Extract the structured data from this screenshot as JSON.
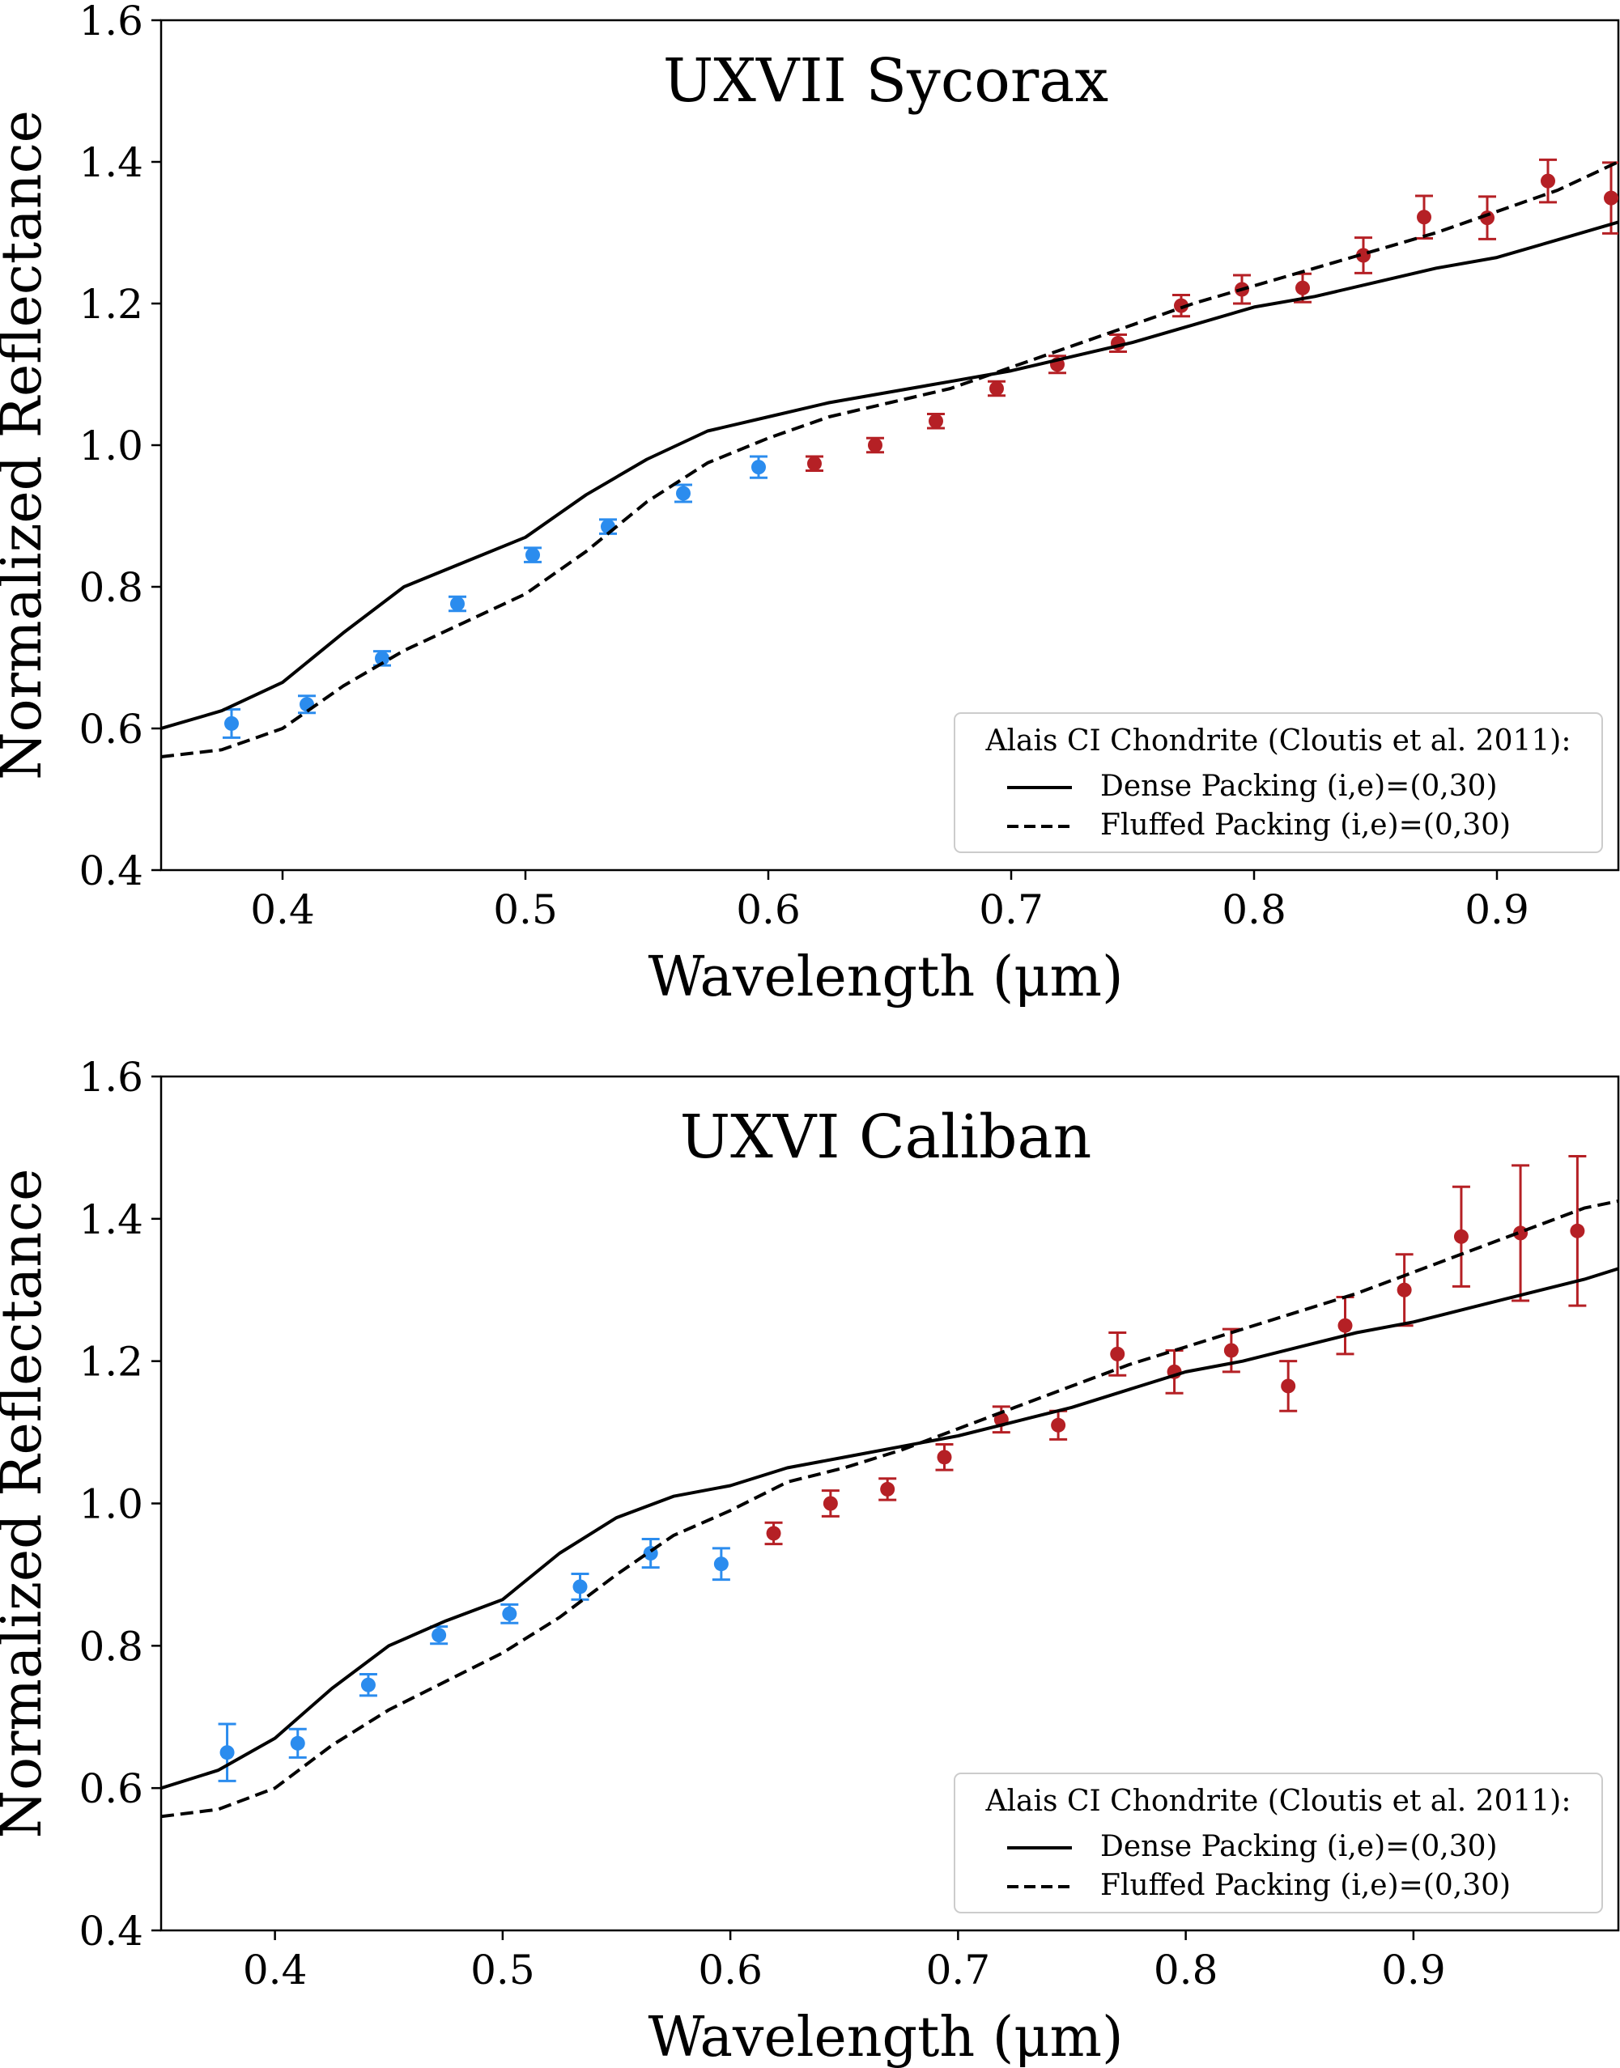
{
  "colors": {
    "blue_points": "#2b8cee",
    "red_points": "#b52025",
    "model_lines": "#000000",
    "background": "#ffffff",
    "legend_border": "#cccccc"
  },
  "chart_data": [
    {
      "type": "scatter",
      "title": "UXVII Sycorax",
      "xlabel": "Wavelength (μm)",
      "ylabel": "Normalized Reflectance",
      "xlim": [
        0.35,
        0.95
      ],
      "ylim": [
        0.4,
        1.6
      ],
      "xticks": [
        "0.4",
        "0.5",
        "0.6",
        "0.7",
        "0.8",
        "0.9"
      ],
      "yticks": [
        "0.4",
        "0.6",
        "0.8",
        "1.0",
        "1.2",
        "1.4",
        "1.6"
      ],
      "grid": false,
      "legend": {
        "title": "Alais CI Chondrite (Cloutis et al. 2011):",
        "position": "lower-right",
        "entries": [
          "Dense Packing (i,e)=(0,30)",
          "Fluffed Packing (i,e)=(0,30)"
        ]
      },
      "series": [
        {
          "style": "points",
          "color": "#2b8cee",
          "x": [
            0.379,
            0.41,
            0.441,
            0.472,
            0.503,
            0.534,
            0.565,
            0.596
          ],
          "y": [
            0.607,
            0.634,
            0.699,
            0.776,
            0.845,
            0.885,
            0.932,
            0.969
          ],
          "err": [
            0.02,
            0.012,
            0.01,
            0.01,
            0.01,
            0.01,
            0.012,
            0.015
          ]
        },
        {
          "style": "points",
          "color": "#b52025",
          "x": [
            0.619,
            0.644,
            0.669,
            0.694,
            0.719,
            0.744,
            0.77,
            0.795,
            0.82,
            0.845,
            0.87,
            0.896,
            0.921,
            0.947
          ],
          "y": [
            0.974,
            1.0,
            1.034,
            1.08,
            1.114,
            1.144,
            1.197,
            1.22,
            1.222,
            1.268,
            1.322,
            1.321,
            1.373,
            1.349
          ],
          "err": [
            0.01,
            0.01,
            0.01,
            0.01,
            0.012,
            0.012,
            0.015,
            0.02,
            0.02,
            0.025,
            0.03,
            0.03,
            0.03,
            0.05
          ]
        },
        {
          "name": "Dense Packing (i,e)=(0,30)",
          "style": "solid",
          "color": "#000000",
          "x": [
            0.35,
            0.375,
            0.4,
            0.425,
            0.45,
            0.475,
            0.5,
            0.525,
            0.55,
            0.575,
            0.6,
            0.625,
            0.65,
            0.675,
            0.7,
            0.725,
            0.75,
            0.775,
            0.8,
            0.825,
            0.85,
            0.875,
            0.9,
            0.925,
            0.95
          ],
          "y": [
            0.6,
            0.625,
            0.665,
            0.735,
            0.8,
            0.835,
            0.87,
            0.93,
            0.98,
            1.02,
            1.04,
            1.06,
            1.075,
            1.09,
            1.105,
            1.125,
            1.145,
            1.17,
            1.195,
            1.21,
            1.23,
            1.25,
            1.265,
            1.29,
            1.315
          ]
        },
        {
          "name": "Fluffed Packing (i,e)=(0,30)",
          "style": "dashed",
          "color": "#000000",
          "x": [
            0.35,
            0.375,
            0.4,
            0.425,
            0.45,
            0.475,
            0.5,
            0.525,
            0.55,
            0.575,
            0.6,
            0.625,
            0.65,
            0.675,
            0.7,
            0.725,
            0.75,
            0.775,
            0.8,
            0.825,
            0.85,
            0.875,
            0.9,
            0.925,
            0.95
          ],
          "y": [
            0.56,
            0.57,
            0.6,
            0.66,
            0.71,
            0.75,
            0.79,
            0.85,
            0.92,
            0.975,
            1.01,
            1.04,
            1.06,
            1.08,
            1.11,
            1.14,
            1.17,
            1.2,
            1.225,
            1.25,
            1.275,
            1.3,
            1.33,
            1.36,
            1.4
          ]
        }
      ]
    },
    {
      "type": "scatter",
      "title": "UXVI Caliban",
      "xlabel": "Wavelength (μm)",
      "ylabel": "Normalized Reflectance",
      "xlim": [
        0.35,
        0.99
      ],
      "ylim": [
        0.4,
        1.6
      ],
      "xticks": [
        "0.4",
        "0.5",
        "0.6",
        "0.7",
        "0.8",
        "0.9"
      ],
      "yticks": [
        "0.4",
        "0.6",
        "0.8",
        "1.0",
        "1.2",
        "1.4",
        "1.6"
      ],
      "grid": false,
      "legend": {
        "title": "Alais CI Chondrite (Cloutis et al. 2011):",
        "position": "lower-right",
        "entries": [
          "Dense Packing (i,e)=(0,30)",
          "Fluffed Packing (i,e)=(0,30)"
        ]
      },
      "series": [
        {
          "style": "points",
          "color": "#2b8cee",
          "x": [
            0.379,
            0.41,
            0.441,
            0.472,
            0.503,
            0.534,
            0.565,
            0.596
          ],
          "y": [
            0.65,
            0.663,
            0.745,
            0.815,
            0.845,
            0.883,
            0.93,
            0.915
          ],
          "err": [
            0.04,
            0.02,
            0.015,
            0.012,
            0.013,
            0.018,
            0.02,
            0.022
          ]
        },
        {
          "style": "points",
          "color": "#b52025",
          "x": [
            0.619,
            0.644,
            0.669,
            0.694,
            0.719,
            0.744,
            0.77,
            0.795,
            0.82,
            0.845,
            0.87,
            0.896,
            0.921,
            0.947,
            0.972
          ],
          "y": [
            0.958,
            1.0,
            1.02,
            1.065,
            1.118,
            1.11,
            1.21,
            1.185,
            1.215,
            1.165,
            1.25,
            1.3,
            1.375,
            1.38,
            1.383
          ],
          "err": [
            0.015,
            0.018,
            0.015,
            0.018,
            0.018,
            0.02,
            0.03,
            0.03,
            0.03,
            0.035,
            0.04,
            0.05,
            0.07,
            0.095,
            0.105
          ]
        },
        {
          "name": "Dense Packing (i,e)=(0,30)",
          "style": "solid",
          "color": "#000000",
          "x": [
            0.35,
            0.375,
            0.4,
            0.425,
            0.45,
            0.475,
            0.5,
            0.525,
            0.55,
            0.575,
            0.6,
            0.625,
            0.65,
            0.675,
            0.7,
            0.725,
            0.75,
            0.775,
            0.8,
            0.825,
            0.85,
            0.875,
            0.9,
            0.925,
            0.95,
            0.975,
            0.99
          ],
          "y": [
            0.6,
            0.625,
            0.67,
            0.74,
            0.8,
            0.835,
            0.865,
            0.93,
            0.98,
            1.01,
            1.025,
            1.05,
            1.065,
            1.08,
            1.095,
            1.115,
            1.135,
            1.16,
            1.185,
            1.2,
            1.22,
            1.24,
            1.255,
            1.275,
            1.295,
            1.315,
            1.33
          ]
        },
        {
          "name": "Fluffed Packing (i,e)=(0,30)",
          "style": "dashed",
          "color": "#000000",
          "x": [
            0.35,
            0.375,
            0.4,
            0.425,
            0.45,
            0.475,
            0.5,
            0.525,
            0.55,
            0.575,
            0.6,
            0.625,
            0.65,
            0.675,
            0.7,
            0.725,
            0.75,
            0.775,
            0.8,
            0.825,
            0.85,
            0.875,
            0.9,
            0.925,
            0.95,
            0.975,
            0.99
          ],
          "y": [
            0.56,
            0.57,
            0.6,
            0.66,
            0.71,
            0.75,
            0.79,
            0.84,
            0.9,
            0.955,
            0.99,
            1.03,
            1.05,
            1.075,
            1.105,
            1.135,
            1.165,
            1.195,
            1.22,
            1.245,
            1.27,
            1.295,
            1.325,
            1.355,
            1.385,
            1.415,
            1.425
          ]
        }
      ]
    }
  ]
}
